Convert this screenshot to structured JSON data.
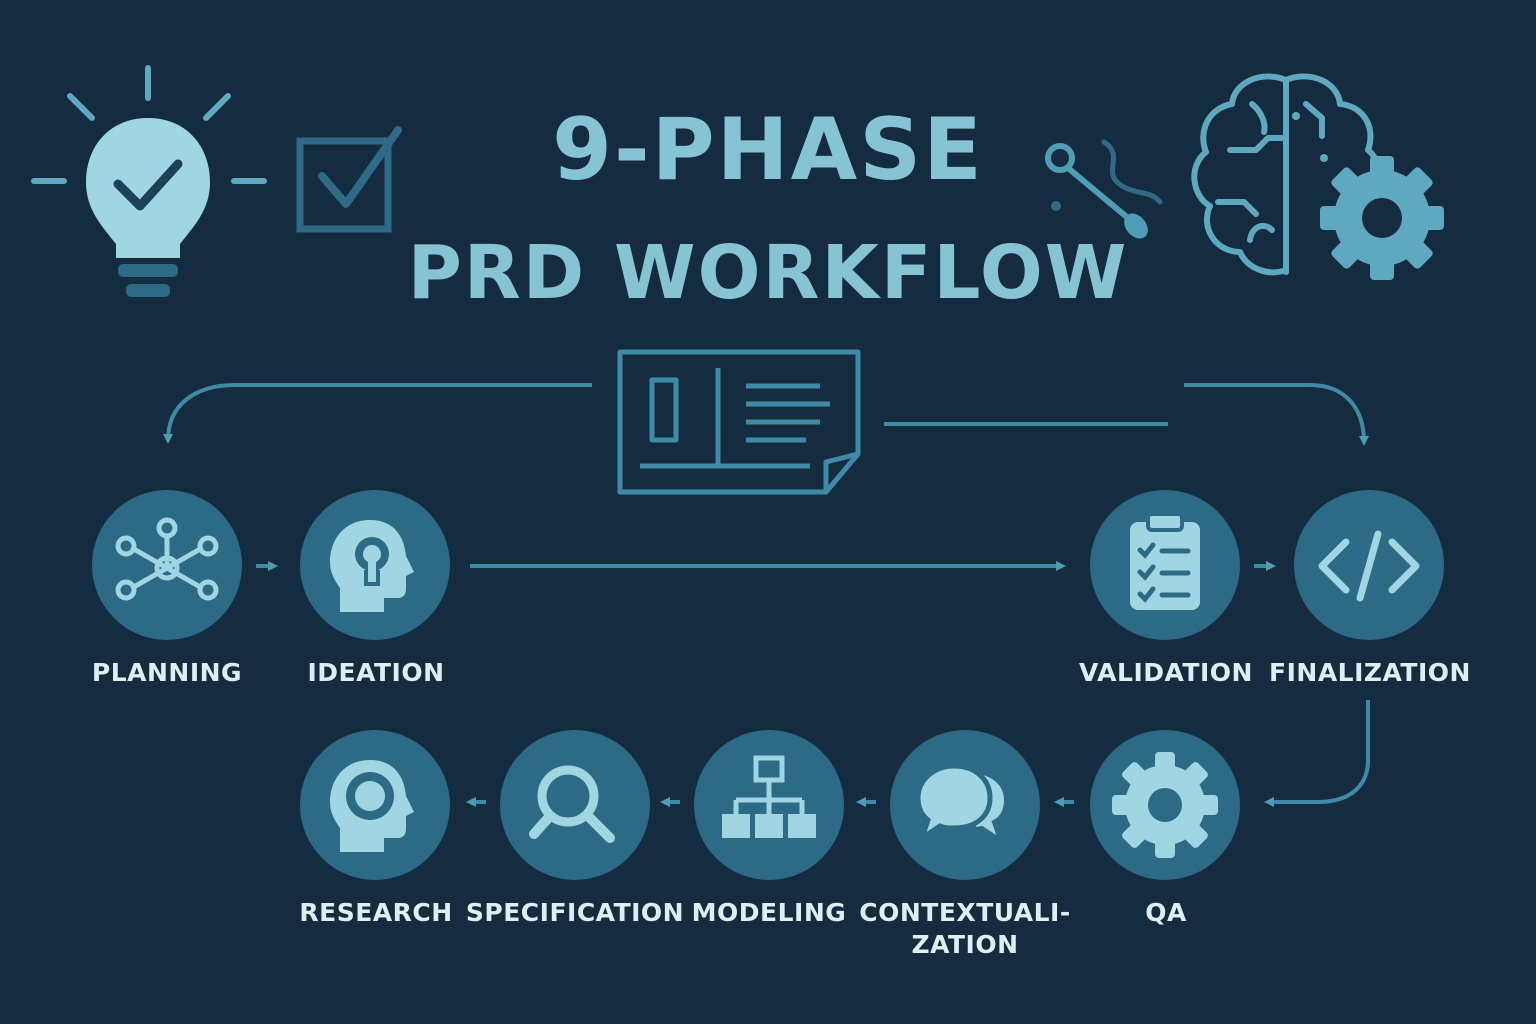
{
  "title": {
    "line1": "9-PHASE",
    "line2": "PRD WORKFLOW"
  },
  "colors": {
    "background": "#152b40",
    "node_fill": "#2d6a86",
    "icon": "#9fd6e2",
    "accent": "#4f9db5",
    "label": "#dfeef3",
    "title": "#86c3d3"
  },
  "decorations": [
    "lightbulb-check-icon",
    "checkbox-icon",
    "tools-icon",
    "brain-gear-icon",
    "document-icon"
  ],
  "phases": [
    {
      "label": "PLANNING",
      "icon": "network-icon"
    },
    {
      "label": "IDEATION",
      "icon": "head-lightbulb-icon"
    },
    {
      "label": "VALIDATION",
      "icon": "clipboard-checklist-icon"
    },
    {
      "label": "FINALIZATION",
      "icon": "code-icon"
    },
    {
      "label": "QA",
      "icon": "gear-icon"
    },
    {
      "label_line1": "CONTEXTUALI-",
      "label_line2": "ZATION",
      "icon": "speech-bubbles-icon"
    },
    {
      "label": "MODELING",
      "icon": "hierarchy-icon"
    },
    {
      "label": "SPECIFICATION",
      "icon": "magnifier-icon"
    },
    {
      "label": "RESEARCH",
      "icon": "head-profile-icon"
    }
  ]
}
